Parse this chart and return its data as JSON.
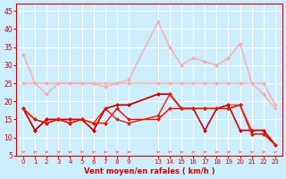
{
  "title": "",
  "xlabel": "Vent moyen/en rafales ( km/h )",
  "ylabel": "",
  "bg_color": "#cceeff",
  "grid_color": "#ffffff",
  "x_labels_left": [
    "0",
    "1",
    "2",
    "3",
    "4",
    "5",
    "6",
    "7",
    "8",
    "9"
  ],
  "x_labels_right": [
    "13",
    "14",
    "15",
    "16",
    "17",
    "18",
    "19",
    "20",
    "21",
    "22",
    "23"
  ],
  "ylim": [
    5,
    47
  ],
  "yticks": [
    5,
    10,
    15,
    20,
    25,
    30,
    35,
    40,
    45
  ],
  "lines": [
    {
      "color": "#ffaaaa",
      "lw": 1.0,
      "x": [
        0,
        1,
        2,
        3,
        4,
        5,
        6,
        7,
        8,
        9,
        10,
        11,
        12,
        13,
        14,
        15,
        16,
        17,
        18,
        19,
        20
      ],
      "y": [
        33,
        25,
        25,
        25,
        25,
        25,
        25,
        25,
        25,
        26,
        42,
        35,
        30,
        32,
        31,
        30,
        32,
        36,
        25,
        22,
        18
      ]
    },
    {
      "color": "#ffaaaa",
      "lw": 1.0,
      "x": [
        0,
        1,
        2,
        3,
        4,
        5,
        6,
        7,
        8,
        9,
        10,
        11,
        12,
        13,
        14,
        15,
        16,
        17,
        18,
        19,
        20
      ],
      "y": [
        25,
        25,
        22,
        25,
        25,
        25,
        25,
        24,
        25,
        25,
        25,
        25,
        25,
        25,
        25,
        25,
        25,
        25,
        25,
        25,
        19
      ]
    },
    {
      "color": "#ff4444",
      "lw": 1.0,
      "x": [
        0,
        1,
        2,
        3,
        4,
        5,
        6,
        7,
        8,
        9,
        10,
        11,
        12,
        13,
        14,
        15,
        16,
        17,
        18,
        19,
        20
      ],
      "y": [
        18,
        12,
        15,
        15,
        15,
        15,
        12,
        18,
        19,
        19,
        22,
        22,
        18,
        18,
        18,
        18,
        19,
        19,
        12,
        12,
        8
      ]
    },
    {
      "color": "#cc0000",
      "lw": 1.2,
      "x": [
        0,
        1,
        2,
        3,
        4,
        5,
        6,
        7,
        8,
        9,
        10,
        11,
        12,
        13,
        14,
        15,
        16,
        17,
        18,
        19,
        20
      ],
      "y": [
        18,
        12,
        15,
        15,
        15,
        15,
        12,
        18,
        19,
        19,
        22,
        22,
        18,
        18,
        12,
        18,
        19,
        12,
        12,
        12,
        8
      ]
    },
    {
      "color": "#ff0000",
      "lw": 1.0,
      "x": [
        0,
        1,
        2,
        3,
        4,
        5,
        6,
        7,
        8,
        9,
        10,
        11,
        12,
        13,
        14,
        15,
        16,
        17,
        18,
        19,
        20
      ],
      "y": [
        18,
        15,
        14,
        15,
        14,
        15,
        14,
        14,
        18,
        15,
        15,
        18,
        18,
        18,
        18,
        18,
        18,
        19,
        11,
        11,
        8
      ]
    },
    {
      "color": "#dd2200",
      "lw": 1.0,
      "x": [
        0,
        1,
        2,
        3,
        4,
        5,
        6,
        7,
        8,
        9,
        10,
        11,
        12,
        13,
        14,
        15,
        16,
        17,
        18,
        19,
        20
      ],
      "y": [
        18,
        15,
        14,
        15,
        14,
        15,
        14,
        18,
        15,
        14,
        16,
        22,
        18,
        18,
        18,
        18,
        18,
        19,
        11,
        11,
        8
      ]
    }
  ],
  "marker": "D",
  "markersize": 2.0
}
